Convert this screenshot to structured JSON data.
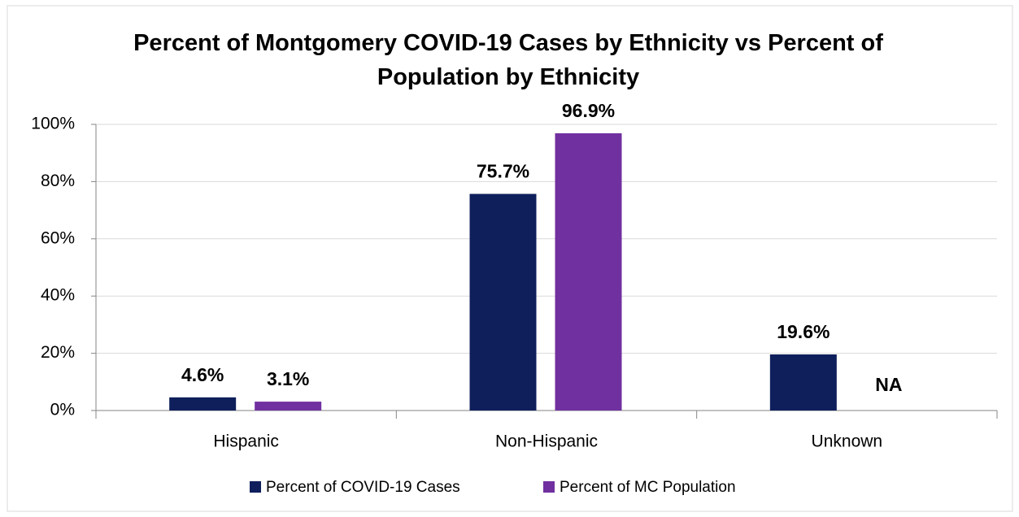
{
  "chart_data": {
    "type": "bar",
    "title": "Percent of Montgomery COVID-19 Cases by Ethnicity vs Percent of Population by Ethnicity",
    "categories": [
      "Hispanic",
      "Non-Hispanic",
      "Unknown"
    ],
    "series": [
      {
        "name": "Percent of COVID-19 Cases",
        "color": "#0e1f5b",
        "values": [
          4.6,
          75.7,
          19.6
        ],
        "value_labels": [
          "4.6%",
          "75.7%",
          "19.6%"
        ]
      },
      {
        "name": "Percent of MC Population",
        "color": "#7030a0",
        "values": [
          3.1,
          96.9,
          null
        ],
        "value_labels": [
          "3.1%",
          "96.9%",
          "NA"
        ]
      }
    ],
    "ylim": [
      0,
      100
    ],
    "yticks": [
      {
        "value": 0,
        "label": "0%"
      },
      {
        "value": 20,
        "label": "20%"
      },
      {
        "value": 40,
        "label": "40%"
      },
      {
        "value": 60,
        "label": "60%"
      },
      {
        "value": 80,
        "label": "80%"
      },
      {
        "value": 100,
        "label": "100%"
      }
    ],
    "grid": true,
    "legend": "bottom"
  }
}
